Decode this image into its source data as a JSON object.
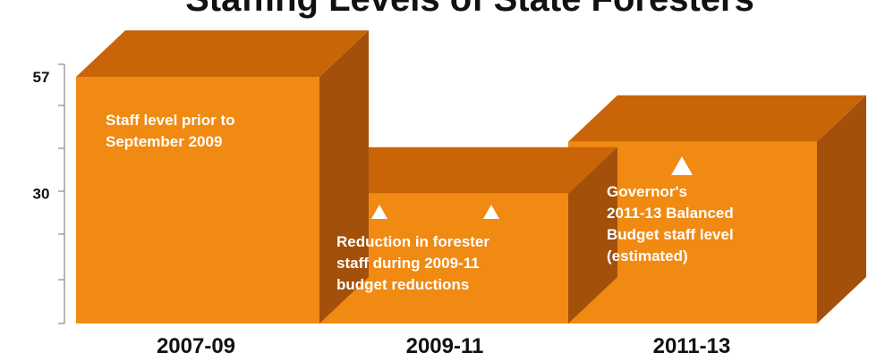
{
  "chart_data": {
    "type": "bar",
    "title": "Staffing Levels of State Foresters",
    "categories": [
      "2007-09",
      "2009-11",
      "2011-13"
    ],
    "series": [
      {
        "values": [
          57,
          30,
          42
        ]
      }
    ],
    "yticks_labeled": [
      57,
      30
    ],
    "ylim": [
      0,
      60
    ],
    "grid": false,
    "colors": {
      "front": "#f08a12",
      "top": "#c96508",
      "side": "#a2500a",
      "axis": "#888888"
    },
    "annotations": [
      {
        "lines": [
          "Staff level prior to",
          "September 2009"
        ],
        "category": "2007-09",
        "arrows": 0
      },
      {
        "lines": [
          "Reduction in forester",
          "staff during 2009-11",
          "budget reductions"
        ],
        "category": "2009-11",
        "arrows": 2
      },
      {
        "lines": [
          "Governor's",
          "2011-13 Balanced",
          "Budget staff level",
          "(estimated)"
        ],
        "category": "2011-13",
        "arrows": 1
      }
    ]
  }
}
